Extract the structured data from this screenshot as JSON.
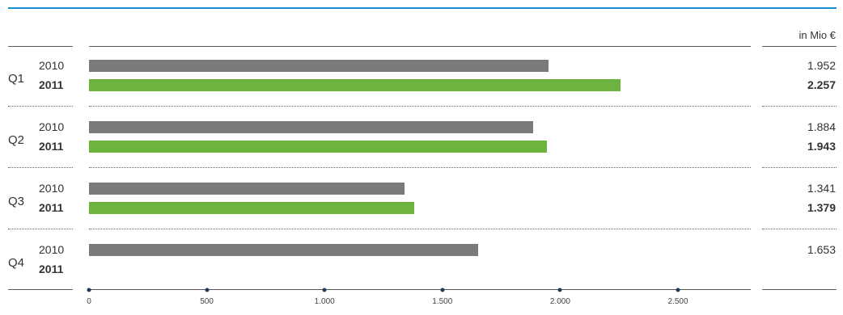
{
  "chart_data": {
    "type": "bar",
    "orientation": "horizontal",
    "unit_label": "in Mio €",
    "categories": [
      "Q1",
      "Q2",
      "Q3",
      "Q4"
    ],
    "series": [
      {
        "name": "2010",
        "color": "#7a7a7a",
        "values": [
          1952,
          1884,
          1341,
          1653
        ],
        "labels": [
          "1.952",
          "1.884",
          "1.341",
          "1.653"
        ]
      },
      {
        "name": "2011",
        "color": "#6db33f",
        "values": [
          2257,
          1943,
          1379,
          null
        ],
        "labels": [
          "2.257",
          "1.943",
          "1.379",
          ""
        ]
      }
    ],
    "xlim": [
      0,
      2500
    ],
    "ticks": [
      0,
      500,
      1000,
      1500,
      2000,
      2500
    ],
    "tick_labels": [
      "0",
      "500",
      "1.000",
      "1.500",
      "2.000",
      "2.500"
    ],
    "grid": false
  }
}
